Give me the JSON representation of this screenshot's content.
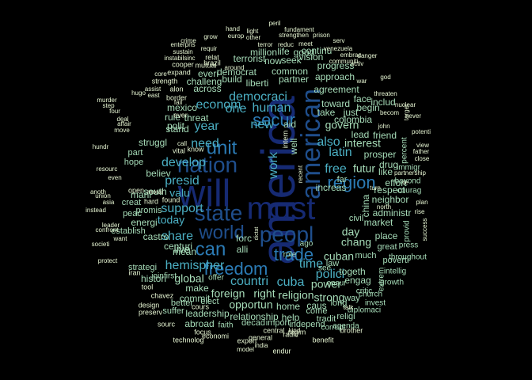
{
  "palette": {
    "background": "#000000",
    "tier_xl": "#162a73",
    "tier_l": "#1f4e8c",
    "tier_m": "#2b7bb5",
    "tier_s": "#4bafc3",
    "tier_xs": "#a6dcb8",
    "tier_xxs": "#e6f5d2"
  },
  "words": [
    {
      "text": "america",
      "tier": "xl"
    },
    {
      "text": "will",
      "tier": "xl"
    },
    {
      "text": "must",
      "tier": "xl"
    },
    {
      "text": "american",
      "tier": "l"
    },
    {
      "text": "nation",
      "tier": "l"
    },
    {
      "text": "peopl",
      "tier": "l"
    },
    {
      "text": "state",
      "tier": "l"
    },
    {
      "text": "world",
      "tier": "l"
    },
    {
      "text": "unit",
      "tier": "m"
    },
    {
      "text": "can",
      "tier": "m"
    },
    {
      "text": "freedom",
      "tier": "m"
    },
    {
      "text": "trade",
      "tier": "m"
    },
    {
      "text": "secur",
      "tier": "m"
    },
    {
      "text": "region",
      "tier": "m"
    },
    {
      "text": "democraci",
      "tier": "s"
    },
    {
      "text": "econom",
      "tier": "s"
    },
    {
      "text": "human",
      "tier": "s"
    },
    {
      "text": "need",
      "tier": "s"
    },
    {
      "text": "year",
      "tier": "s"
    },
    {
      "text": "new",
      "tier": "s"
    },
    {
      "text": "one",
      "tier": "s"
    },
    {
      "text": "also",
      "tier": "s"
    },
    {
      "text": "free",
      "tier": "s"
    },
    {
      "text": "latin",
      "tier": "s"
    },
    {
      "text": "work",
      "tier": "s"
    },
    {
      "text": "develop",
      "tier": "s"
    },
    {
      "text": "presid",
      "tier": "s"
    },
    {
      "text": "support",
      "tier": "s"
    },
    {
      "text": "share",
      "tier": "s"
    },
    {
      "text": "hemispher",
      "tier": "s"
    },
    {
      "text": "countri",
      "tier": "s"
    },
    {
      "text": "time",
      "tier": "s"
    },
    {
      "text": "cuba",
      "tier": "s"
    },
    {
      "text": "polici",
      "tier": "s"
    },
    {
      "text": "valu",
      "tier": "s"
    },
    {
      "text": "today",
      "tier": "s"
    },
    {
      "text": "global",
      "tier": "xs"
    },
    {
      "text": "foreign",
      "tier": "xs"
    },
    {
      "text": "right",
      "tier": "xs"
    },
    {
      "text": "religion",
      "tier": "xs"
    },
    {
      "text": "opportun",
      "tier": "xs"
    },
    {
      "text": "live",
      "tier": "xs"
    },
    {
      "text": "govern",
      "tier": "xs"
    },
    {
      "text": "interest",
      "tier": "xs"
    },
    {
      "text": "futur",
      "tier": "xs"
    },
    {
      "text": "day",
      "tier": "xs"
    },
    {
      "text": "chang",
      "tier": "xs"
    },
    {
      "text": "cuban",
      "tier": "xs"
    },
    {
      "text": "power",
      "tier": "xs"
    },
    {
      "text": "strong",
      "tier": "xs"
    },
    {
      "text": "polit",
      "tier": "xs"
    },
    {
      "text": "stand",
      "tier": "xs"
    },
    {
      "text": "across",
      "tier": "xs"
    },
    {
      "text": "liberti",
      "tier": "xs"
    },
    {
      "text": "common",
      "tier": "xs"
    },
    {
      "text": "partner",
      "tier": "xs"
    },
    {
      "text": "agreement",
      "tier": "xs"
    },
    {
      "text": "toward",
      "tier": "xs"
    },
    {
      "text": "take",
      "tier": "xs"
    },
    {
      "text": "just",
      "tier": "xs"
    },
    {
      "text": "prosper",
      "tier": "xs"
    },
    {
      "text": "market",
      "tier": "xs"
    },
    {
      "text": "alli",
      "tier": "xs"
    },
    {
      "text": "forc",
      "tier": "xs"
    },
    {
      "text": "mean",
      "tier": "xs"
    },
    {
      "text": "centuri",
      "tier": "xs"
    },
    {
      "text": "relationship",
      "tier": "xs"
    },
    {
      "text": "home",
      "tier": "xs"
    },
    {
      "text": "help",
      "tier": "xs"
    },
    {
      "text": "make",
      "tier": "xs"
    },
    {
      "text": "commit",
      "tier": "xs"
    },
    {
      "text": "threat",
      "tier": "xs"
    },
    {
      "text": "challeng",
      "tier": "xs"
    },
    {
      "text": "everi",
      "tier": "xs"
    },
    {
      "text": "build",
      "tier": "xs"
    },
    {
      "text": "democrat",
      "tier": "xs"
    },
    {
      "text": "rule",
      "tier": "xs"
    },
    {
      "text": "struggl",
      "tier": "xs"
    },
    {
      "text": "believ",
      "tier": "xs"
    },
    {
      "text": "south",
      "tier": "xs"
    },
    {
      "text": "mani",
      "tier": "xs"
    },
    {
      "text": "energi",
      "tier": "xs"
    },
    {
      "text": "castro",
      "tier": "xs"
    },
    {
      "text": "histori",
      "tier": "xs"
    },
    {
      "text": "leadership",
      "tier": "xs"
    },
    {
      "text": "abroad",
      "tier": "xs"
    },
    {
      "text": "togeth",
      "tier": "xs"
    },
    {
      "text": "engag",
      "tier": "xs"
    },
    {
      "text": "caus",
      "tier": "xs"
    },
    {
      "text": "place",
      "tier": "xs"
    },
    {
      "text": "neighbor",
      "tier": "xs"
    },
    {
      "text": "drug",
      "tier": "xs"
    },
    {
      "text": "lead",
      "tier": "xs"
    },
    {
      "text": "friend",
      "tier": "xs"
    },
    {
      "text": "respect",
      "tier": "xs"
    },
    {
      "text": "increas",
      "tier": "xs"
    },
    {
      "text": "china",
      "tier": "xs"
    },
    {
      "text": "administr",
      "tier": "xs"
    },
    {
      "text": "like",
      "tier": "xs"
    },
    {
      "text": "effort",
      "tier": "xs"
    },
    {
      "text": "face",
      "tier": "xs"
    },
    {
      "text": "begin",
      "tier": "xs"
    },
    {
      "text": "includ",
      "tier": "xs"
    },
    {
      "text": "approach",
      "tier": "xs"
    },
    {
      "text": "progress",
      "tier": "xs"
    },
    {
      "text": "continu",
      "tier": "xs"
    },
    {
      "text": "vision",
      "tier": "xs"
    },
    {
      "text": "million",
      "tier": "xs"
    },
    {
      "text": "life",
      "tier": "xs"
    },
    {
      "text": "good",
      "tier": "xs"
    },
    {
      "text": "terrorist",
      "tier": "xs"
    },
    {
      "text": "now",
      "tier": "xs"
    },
    {
      "text": "seek",
      "tier": "xs"
    },
    {
      "text": "mexico",
      "tier": "xs"
    },
    {
      "text": "colombia",
      "tier": "xs"
    },
    {
      "text": "aid",
      "tier": "xs"
    },
    {
      "text": "well",
      "tier": "xs"
    },
    {
      "text": "intern",
      "tier": "xxs"
    },
    {
      "text": "elect",
      "tier": "xs"
    },
    {
      "text": "decad",
      "tier": "xs"
    },
    {
      "text": "import",
      "tier": "xs"
    },
    {
      "text": "independ",
      "tier": "xs"
    },
    {
      "text": "come",
      "tier": "xs"
    },
    {
      "text": "tradit",
      "tier": "xs"
    },
    {
      "text": "religi",
      "tier": "xs"
    },
    {
      "text": "long",
      "tier": "xs"
    },
    {
      "text": "way",
      "tier": "xs"
    },
    {
      "text": "great",
      "tier": "xs"
    },
    {
      "text": "much",
      "tier": "xs"
    },
    {
      "text": "law",
      "tier": "xs"
    },
    {
      "text": "civil",
      "tier": "xs"
    },
    {
      "text": "far",
      "tier": "xs"
    },
    {
      "text": "peac",
      "tier": "xs"
    },
    {
      "text": "creat",
      "tier": "xs"
    },
    {
      "text": "hope",
      "tier": "xs"
    },
    {
      "text": "part",
      "tier": "xs"
    },
    {
      "text": "promis",
      "tier": "xs"
    },
    {
      "text": "establish",
      "tier": "xs"
    },
    {
      "text": "strategi",
      "tier": "xs"
    },
    {
      "text": "suffer",
      "tier": "xs"
    },
    {
      "text": "better",
      "tier": "xs"
    },
    {
      "text": "join",
      "tier": "xs"
    },
    {
      "text": "first",
      "tier": "xs"
    },
    {
      "text": "offer",
      "tier": "xs"
    },
    {
      "text": "role",
      "tier": "xs"
    },
    {
      "text": "ago",
      "tier": "xs"
    },
    {
      "text": "see",
      "tier": "xs"
    },
    {
      "text": "ensur",
      "tier": "xs"
    },
    {
      "text": "critic",
      "tier": "xs"
    },
    {
      "text": "extrem",
      "tier": "xs"
    },
    {
      "text": "poverti",
      "tier": "xs"
    },
    {
      "text": "intellig",
      "tier": "xs"
    },
    {
      "text": "throughout",
      "tier": "xs"
    },
    {
      "text": "press",
      "tier": "xs"
    },
    {
      "text": "provid",
      "tier": "xs"
    },
    {
      "text": "percent",
      "tier": "xs"
    },
    {
      "text": "immigr",
      "tier": "xs"
    },
    {
      "text": "beyond",
      "tier": "xs"
    },
    {
      "text": "courag",
      "tier": "xs"
    },
    {
      "text": "faith",
      "tier": "xs"
    },
    {
      "text": "corrupt",
      "tier": "xs"
    },
    {
      "text": "agenda",
      "tier": "xs"
    },
    {
      "text": "diplomaci",
      "tier": "xs"
    },
    {
      "text": "growth",
      "tier": "xs"
    },
    {
      "text": "invest",
      "tier": "xs"
    },
    {
      "text": "church",
      "tier": "xs"
    },
    {
      "text": "brother",
      "tier": "xs"
    },
    {
      "text": "benefit",
      "tier": "xs"
    },
    {
      "text": "radic",
      "tier": "xs"
    },
    {
      "text": "regim",
      "tier": "xs"
    },
    {
      "text": "central",
      "tier": "xs"
    },
    {
      "text": "kind",
      "tier": "xs"
    },
    {
      "text": "export",
      "tier": "xs"
    },
    {
      "text": "general",
      "tier": "xs"
    },
    {
      "text": "endur",
      "tier": "xs"
    },
    {
      "text": "india",
      "tier": "xs"
    },
    {
      "text": "model",
      "tier": "xs"
    },
    {
      "text": "economi",
      "tier": "xs"
    },
    {
      "text": "focus",
      "tier": "xs"
    },
    {
      "text": "technolog",
      "tier": "xs"
    },
    {
      "text": "sourc",
      "tier": "xs"
    },
    {
      "text": "design",
      "tier": "xs"
    },
    {
      "text": "preserv",
      "tier": "xs"
    },
    {
      "text": "cours",
      "tier": "xs"
    },
    {
      "text": "chavez",
      "tier": "xs"
    },
    {
      "text": "tool",
      "tier": "xs"
    },
    {
      "text": "iran",
      "tier": "xs"
    },
    {
      "text": "protect",
      "tier": "xs"
    },
    {
      "text": "societi",
      "tier": "xs"
    },
    {
      "text": "want",
      "tier": "xs"
    },
    {
      "text": "confront",
      "tier": "xs"
    },
    {
      "text": "leader",
      "tier": "xs"
    },
    {
      "text": "instead",
      "tier": "xs"
    },
    {
      "text": "asia",
      "tier": "xs"
    },
    {
      "text": "union",
      "tier": "xs"
    },
    {
      "text": "anoth",
      "tier": "xs"
    },
    {
      "text": "even",
      "tier": "xs"
    },
    {
      "text": "resourc",
      "tier": "xs"
    },
    {
      "text": "hundr",
      "tier": "xs"
    },
    {
      "text": "move",
      "tier": "xs"
    },
    {
      "text": "affair",
      "tier": "xs"
    },
    {
      "text": "deal",
      "tier": "xs"
    },
    {
      "text": "four",
      "tier": "xs"
    },
    {
      "text": "murder",
      "tier": "xs"
    },
    {
      "text": "step",
      "tier": "xs"
    },
    {
      "text": "hugo",
      "tier": "xs"
    },
    {
      "text": "assist",
      "tier": "xs"
    },
    {
      "text": "east",
      "tier": "xs"
    },
    {
      "text": "fail",
      "tier": "xs"
    },
    {
      "text": "border",
      "tier": "xs"
    },
    {
      "text": "alon",
      "tier": "xs"
    },
    {
      "text": "strength",
      "tier": "xs"
    },
    {
      "text": "expand",
      "tier": "xs"
    },
    {
      "text": "core",
      "tier": "xs"
    },
    {
      "text": "cooper",
      "tier": "xs"
    },
    {
      "text": "instabilsinc",
      "tier": "xs"
    },
    {
      "text": "sustain",
      "tier": "xs"
    },
    {
      "text": "enterpris",
      "tier": "xs"
    },
    {
      "text": "crime",
      "tier": "xs"
    },
    {
      "text": "requir",
      "tier": "xs"
    },
    {
      "text": "mutual",
      "tier": "xs"
    },
    {
      "text": "relat",
      "tier": "xs"
    },
    {
      "text": "brazil",
      "tier": "xs"
    },
    {
      "text": "grow",
      "tier": "xs"
    },
    {
      "text": "europ",
      "tier": "xs"
    },
    {
      "text": "hand",
      "tier": "xs"
    },
    {
      "text": "light",
      "tier": "xs"
    },
    {
      "text": "other",
      "tier": "xs"
    },
    {
      "text": "peril",
      "tier": "xs"
    },
    {
      "text": "fundament",
      "tier": "xs"
    },
    {
      "text": "strengthen",
      "tier": "xs"
    },
    {
      "text": "prison",
      "tier": "xs"
    },
    {
      "text": "serv",
      "tier": "xs"
    },
    {
      "text": "venezuela",
      "tier": "xs"
    },
    {
      "text": "embrac",
      "tier": "xs"
    },
    {
      "text": "activ",
      "tier": "xs"
    },
    {
      "text": "war",
      "tier": "xs"
    },
    {
      "text": "god",
      "tier": "xs"
    },
    {
      "text": "threaten",
      "tier": "xs"
    },
    {
      "text": "becom",
      "tier": "xs"
    },
    {
      "text": "target",
      "tier": "xs"
    },
    {
      "text": "never",
      "tier": "xs"
    },
    {
      "text": "nuclear",
      "tier": "xs"
    },
    {
      "text": "john",
      "tier": "xs"
    },
    {
      "text": "potenti",
      "tier": "xs"
    },
    {
      "text": "view",
      "tier": "xs"
    },
    {
      "text": "father",
      "tier": "xs"
    },
    {
      "text": "close",
      "tier": "xs"
    },
    {
      "text": "partnership",
      "tier": "xs"
    },
    {
      "text": "plan",
      "tier": "xs"
    },
    {
      "text": "rise",
      "tier": "xs"
    },
    {
      "text": "success",
      "tier": "xs"
    },
    {
      "text": "north",
      "tier": "xs"
    },
    {
      "text": "danger",
      "tier": "xs"
    },
    {
      "text": "communiti",
      "tier": "xs"
    },
    {
      "text": "reduc",
      "tier": "xs"
    },
    {
      "text": "meet",
      "tier": "xs"
    },
    {
      "text": "terror",
      "tier": "xs"
    },
    {
      "text": "around",
      "tier": "xs"
    },
    {
      "text": "ever",
      "tier": "xs"
    },
    {
      "text": "know",
      "tier": "xs"
    },
    {
      "text": "call",
      "tier": "xs"
    },
    {
      "text": "vital",
      "tier": "xs"
    },
    {
      "text": "moral",
      "tier": "xs"
    },
    {
      "text": "open",
      "tier": "xs"
    },
    {
      "text": "hard",
      "tier": "xs"
    },
    {
      "text": "found",
      "tier": "xs"
    },
    {
      "text": "recent",
      "tier": "xs"
    },
    {
      "text": "dictat",
      "tier": "xs"
    },
    {
      "text": "tie",
      "tier": "xs"
    },
    {
      "text": "turn",
      "tier": "xs"
    },
    {
      "text": "talk",
      "tier": "xs"
    }
  ]
}
